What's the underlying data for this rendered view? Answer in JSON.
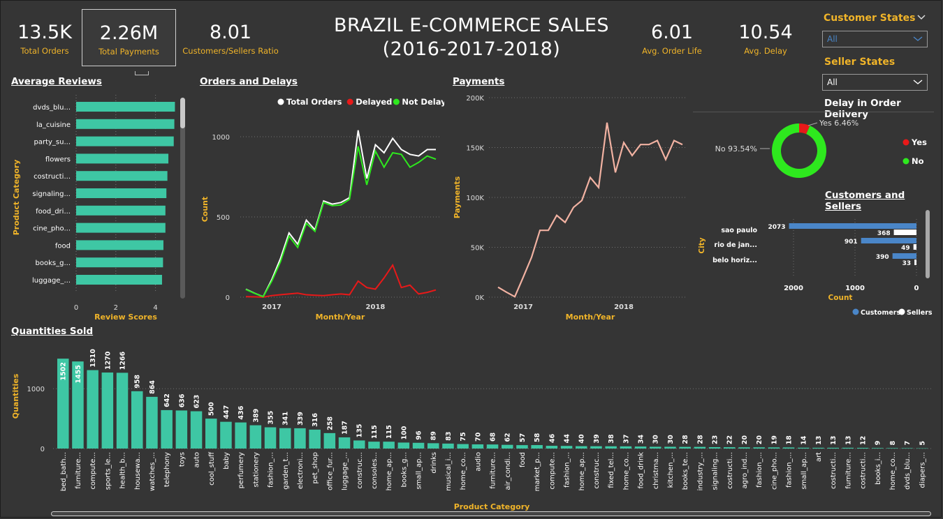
{
  "header": {
    "title_line1": "BRAZIL E-COMMERCE SALES",
    "title_line2": "(2016-2017-2018)"
  },
  "kpis": [
    {
      "value": "13.5K",
      "label": "Total Orders"
    },
    {
      "value": "2.26M",
      "label": "Total Payments"
    },
    {
      "value": "8.01",
      "label": "Customers/Sellers Ratio"
    },
    {
      "value": "6.01",
      "label": "Avg. Order Life"
    },
    {
      "value": "10.54",
      "label": "Avg. Delay"
    }
  ],
  "slicers": {
    "customer_states": {
      "label": "Customer States",
      "value": "All"
    },
    "seller_states": {
      "label": "Seller States",
      "value": "All"
    }
  },
  "colors": {
    "accent": "#f0b429",
    "teal": "#3ec7a4",
    "green": "#2ee81e",
    "red": "#e81919",
    "salmon": "#f2b2a2",
    "blue": "#4a86c8",
    "background": "#353535"
  },
  "sections": {
    "avg_reviews": "Average Reviews",
    "orders_delays": "Orders and Delays",
    "payments": "Payments",
    "delay_delivery": "Delay in Order Delivery",
    "customers_sellers": "Customers and Sellers",
    "quantities": "Quantities Sold"
  },
  "chart_data": [
    {
      "id": "avg_reviews",
      "type": "bar",
      "orientation": "horizontal",
      "xlabel": "Review Scores",
      "ylabel": "Product Category",
      "xlim": [
        0,
        5
      ],
      "xticks": [
        "0",
        "2",
        "4"
      ],
      "categories": [
        "dvds_blu...",
        "la_cuisine",
        "party_su...",
        "flowers",
        "costructi...",
        "signaling...",
        "food_dri...",
        "cine_pho...",
        "food",
        "books_g...",
        "luggage_..."
      ],
      "values": [
        4.98,
        4.95,
        4.92,
        4.65,
        4.6,
        4.55,
        4.5,
        4.5,
        4.4,
        4.38,
        4.33
      ]
    },
    {
      "id": "orders_delays",
      "type": "line",
      "xlabel": "Month/Year",
      "ylabel": "Count",
      "ylim": [
        0,
        1100
      ],
      "yticks": [
        "0",
        "500",
        "1000"
      ],
      "xticks": [
        "2017",
        "2018"
      ],
      "legend": [
        "Total Orders",
        "Delayed",
        "Not Delayed"
      ],
      "x": [
        "2016-10",
        "2016-11",
        "2016-12",
        "2017-01",
        "2017-02",
        "2017-03",
        "2017-04",
        "2017-05",
        "2017-06",
        "2017-07",
        "2017-08",
        "2017-09",
        "2017-10",
        "2017-11",
        "2017-12",
        "2018-01",
        "2018-02",
        "2018-03",
        "2018-04",
        "2018-05",
        "2018-06",
        "2018-07",
        "2018-08"
      ],
      "series": [
        {
          "name": "Total Orders",
          "values": [
            50,
            25,
            3,
            110,
            240,
            400,
            330,
            480,
            420,
            600,
            580,
            590,
            620,
            1040,
            740,
            950,
            900,
            990,
            920,
            890,
            880,
            920,
            920
          ]
        },
        {
          "name": "Delayed",
          "values": [
            3,
            2,
            0,
            10,
            15,
            20,
            25,
            15,
            12,
            10,
            15,
            20,
            15,
            100,
            60,
            50,
            120,
            200,
            60,
            75,
            20,
            30,
            45
          ]
        },
        {
          "name": "Not Delayed",
          "values": [
            48,
            24,
            3,
            100,
            220,
            380,
            310,
            460,
            410,
            590,
            570,
            575,
            610,
            940,
            700,
            910,
            810,
            900,
            890,
            810,
            840,
            880,
            860
          ]
        }
      ]
    },
    {
      "id": "payments",
      "type": "line",
      "xlabel": "Month/Year",
      "ylabel": "Payments",
      "ylim": [
        0,
        200000
      ],
      "yticks": [
        "0K",
        "50K",
        "100K",
        "150K",
        "200K"
      ],
      "xticks": [
        "2017",
        "2018"
      ],
      "x": [
        "2016-10",
        "2016-11",
        "2016-12",
        "2017-01",
        "2017-02",
        "2017-03",
        "2017-04",
        "2017-05",
        "2017-06",
        "2017-07",
        "2017-08",
        "2017-09",
        "2017-10",
        "2017-11",
        "2017-12",
        "2018-01",
        "2018-02",
        "2018-03",
        "2018-04",
        "2018-05",
        "2018-06",
        "2018-07",
        "2018-08"
      ],
      "series": [
        {
          "name": "Payments",
          "values": [
            10000,
            5000,
            500,
            20000,
            40000,
            67000,
            67000,
            82000,
            75000,
            90000,
            97000,
            120000,
            110000,
            175000,
            125000,
            155000,
            142000,
            153000,
            153000,
            157000,
            138000,
            157000,
            153000
          ]
        }
      ]
    },
    {
      "id": "delay_delivery",
      "type": "pie",
      "style": "donut",
      "legend": [
        "Yes",
        "No"
      ],
      "slices": [
        {
          "name": "Yes",
          "value": 6.46,
          "label": "Yes 6.46%"
        },
        {
          "name": "No",
          "value": 93.54,
          "label": "No 93.54%"
        }
      ]
    },
    {
      "id": "customers_sellers",
      "type": "bar",
      "orientation": "horizontal",
      "xlabel": "Count",
      "ylabel": "City",
      "xlim": [
        2000,
        0
      ],
      "xticks": [
        "2000",
        "1000",
        "0"
      ],
      "categories": [
        "sao paulo",
        "rio de jan...",
        "belo horiz..."
      ],
      "legend": [
        "Customers",
        "Sellers"
      ],
      "series": [
        {
          "name": "Customers",
          "values": [
            2073,
            901,
            390
          ]
        },
        {
          "name": "Sellers",
          "values": [
            368,
            49,
            33
          ]
        }
      ]
    },
    {
      "id": "quantities",
      "type": "bar",
      "xlabel": "Product Category",
      "ylabel": "Quantities",
      "ylim": [
        0,
        1550
      ],
      "yticks": [
        "0",
        "1000"
      ],
      "categories": [
        "bed_bath...",
        "furniture...",
        "compute...",
        "sports_le...",
        "health_b...",
        "housewa...",
        "watches_...",
        "telephony",
        "toys",
        "auto",
        "cool_stuff",
        "baby",
        "perfumery",
        "stationery",
        "fashion_...",
        "garden_t...",
        "electroni...",
        "pet_shop",
        "office_fur...",
        "luggage_...",
        "construc...",
        "consoles...",
        "home_ap...",
        "books_g...",
        "small_ap...",
        "drinks",
        "musical_i...",
        "home_co...",
        "audio",
        "furniture...",
        "air_condi...",
        "food",
        "market_p...",
        "compute...",
        "fashion_...",
        "home_ap...",
        "construc...",
        "fixed_tel...",
        "home_co...",
        "food_drink",
        "christma...",
        "kitchen_...",
        "books_te...",
        "industry_...",
        "signaling...",
        "costructi...",
        "agro_ind...",
        "fashion_...",
        "cine_pho...",
        "fashion_...",
        "small_ap...",
        "art",
        "costructi...",
        "furniture...",
        "costructi...",
        "books_i...",
        "home_co...",
        "dvds_blu...",
        "diapers_..."
      ],
      "values": [
        1502,
        1455,
        1310,
        1270,
        1266,
        958,
        864,
        642,
        636,
        623,
        500,
        447,
        436,
        389,
        355,
        341,
        339,
        316,
        258,
        187,
        135,
        115,
        115,
        100,
        96,
        89,
        83,
        75,
        70,
        68,
        62,
        57,
        58,
        46,
        44,
        40,
        39,
        38,
        37,
        34,
        30,
        30,
        28,
        28,
        23,
        22,
        20,
        20,
        19,
        18,
        14,
        13,
        13,
        13,
        12,
        9,
        8,
        7,
        5
      ]
    }
  ]
}
